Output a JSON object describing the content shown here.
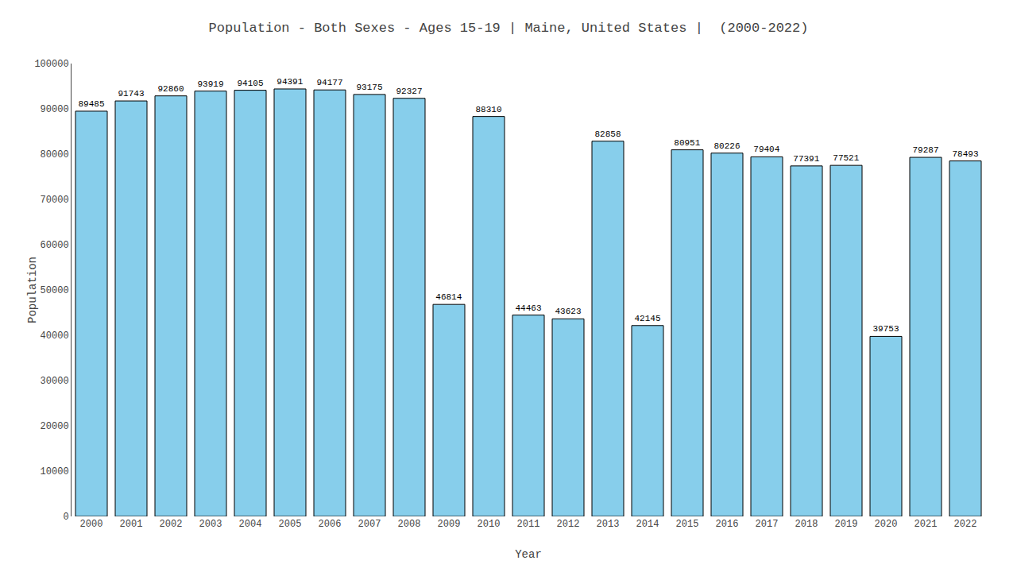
{
  "chart_data": {
    "type": "bar",
    "title": "Population - Both Sexes - Ages 15-19 | Maine, United States |  (2000-2022)",
    "xlabel": "Year",
    "ylabel": "Population",
    "categories": [
      "2000",
      "2001",
      "2002",
      "2003",
      "2004",
      "2005",
      "2006",
      "2007",
      "2008",
      "2009",
      "2010",
      "2011",
      "2012",
      "2013",
      "2014",
      "2015",
      "2016",
      "2017",
      "2018",
      "2019",
      "2020",
      "2021",
      "2022"
    ],
    "values": [
      89485,
      91743,
      92860,
      93919,
      94105,
      94391,
      94177,
      93175,
      92327,
      46814,
      88310,
      44463,
      43623,
      82858,
      42145,
      80951,
      80226,
      79404,
      77391,
      77521,
      39753,
      79287,
      78493
    ],
    "color": "#87CEEB",
    "ylim": [
      0,
      100000
    ],
    "yticks": [
      0,
      10000,
      20000,
      30000,
      40000,
      50000,
      60000,
      70000,
      80000,
      90000,
      100000
    ],
    "grid": false,
    "data_labels": true
  }
}
